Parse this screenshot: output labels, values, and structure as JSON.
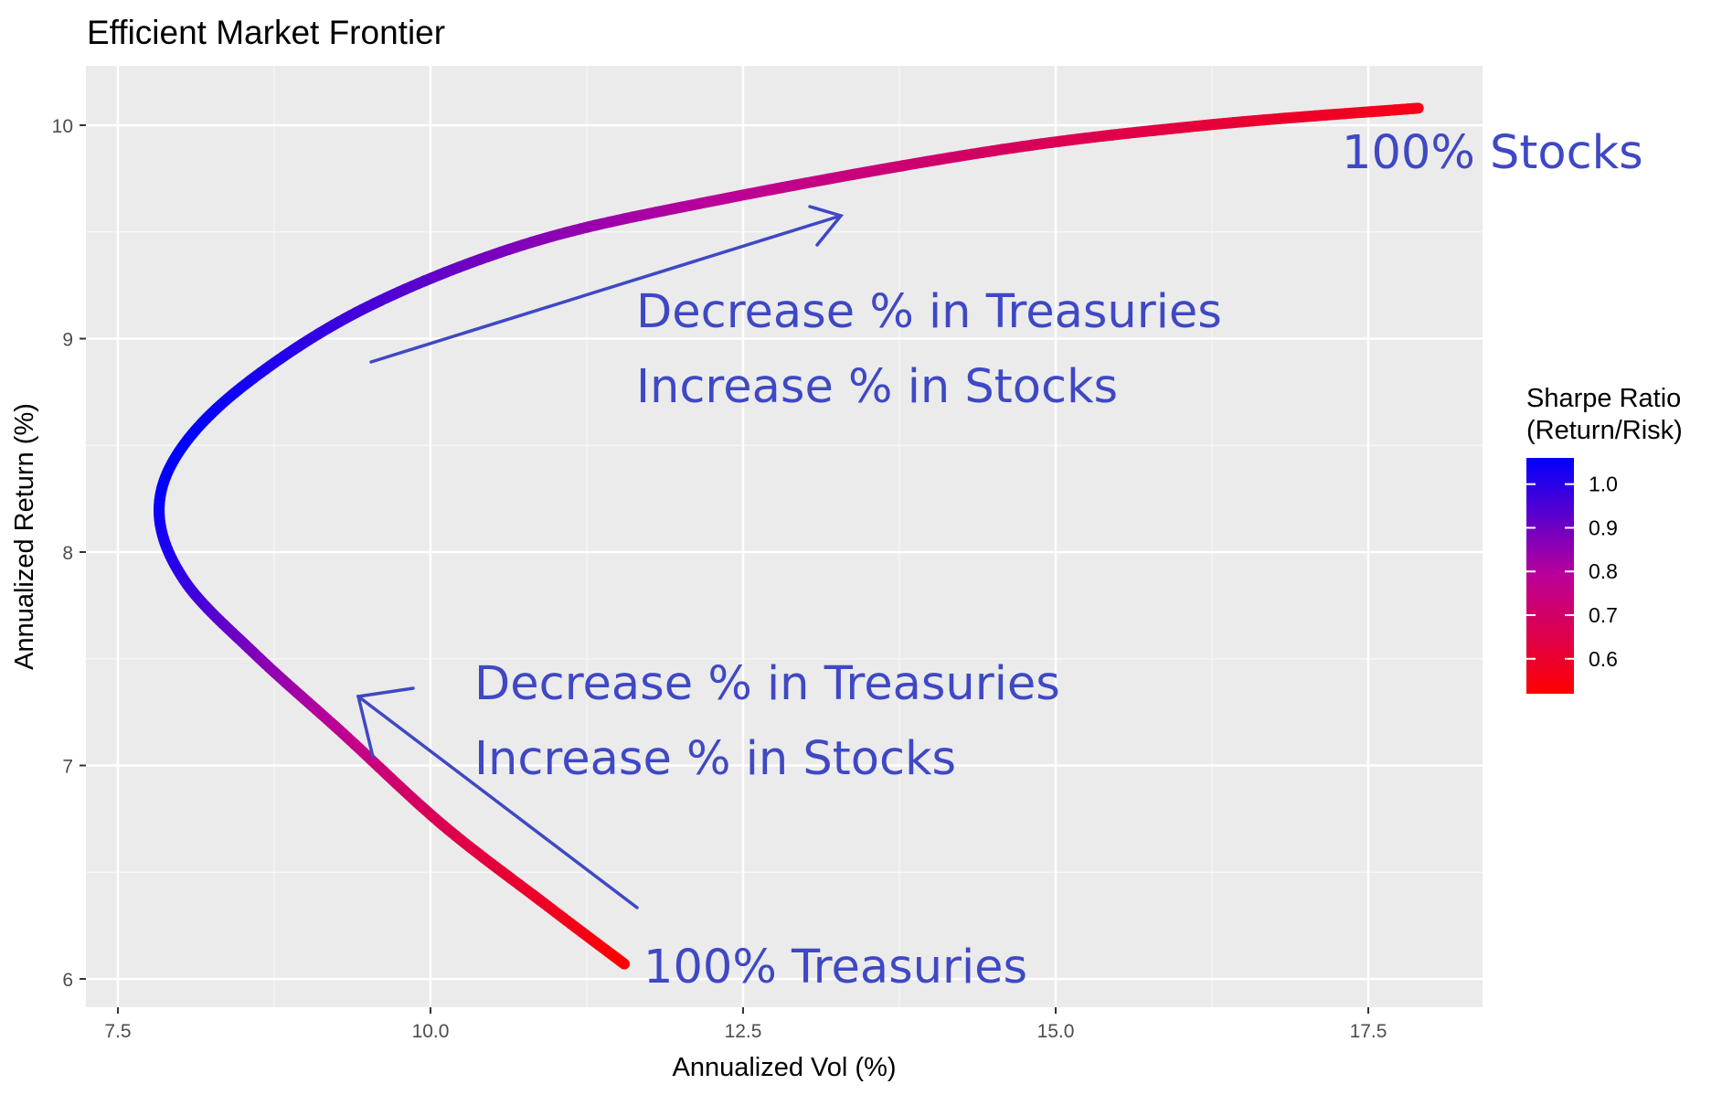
{
  "chart_data": {
    "type": "line",
    "title": "Efficient Market Frontier",
    "xlabel": "Annualized Vol (%)",
    "ylabel": "Annualized Return (%)",
    "xlim": [
      7.5,
      18.3
    ],
    "ylim": [
      6.0,
      10.2
    ],
    "x_ticks": [
      7.5,
      10.0,
      12.5,
      15.0,
      17.5
    ],
    "x_tick_labels": [
      "7.5",
      "10.0",
      "12.5",
      "15.0",
      "17.5"
    ],
    "y_ticks": [
      6,
      7,
      8,
      9,
      10
    ],
    "y_tick_labels": [
      "6",
      "7",
      "8",
      "9",
      "10"
    ],
    "grid": true,
    "series": [
      {
        "points": [
          {
            "x": 11.55,
            "y": 6.07,
            "sharpe": 0.52
          },
          {
            "x": 10.94,
            "y": 6.34,
            "sharpe": 0.58
          },
          {
            "x": 10.1,
            "y": 6.72,
            "sharpe": 0.66
          },
          {
            "x": 9.3,
            "y": 7.15,
            "sharpe": 0.77
          },
          {
            "x": 8.6,
            "y": 7.52,
            "sharpe": 0.87
          },
          {
            "x": 8.04,
            "y": 7.86,
            "sharpe": 0.98
          },
          {
            "x": 7.83,
            "y": 8.18,
            "sharpe": 1.04
          },
          {
            "x": 8.0,
            "y": 8.48,
            "sharpe": 1.06
          },
          {
            "x": 8.55,
            "y": 8.8,
            "sharpe": 1.03
          },
          {
            "x": 9.5,
            "y": 9.15,
            "sharpe": 0.96
          },
          {
            "x": 10.8,
            "y": 9.45,
            "sharpe": 0.87
          },
          {
            "x": 12.3,
            "y": 9.65,
            "sharpe": 0.79
          },
          {
            "x": 14.5,
            "y": 9.88,
            "sharpe": 0.69
          },
          {
            "x": 16.2,
            "y": 10.0,
            "sharpe": 0.62
          },
          {
            "x": 17.9,
            "y": 10.08,
            "sharpe": 0.56
          }
        ]
      }
    ],
    "color_scale": {
      "title_line1": "Sharpe Ratio",
      "title_line2": "(Return/Risk)",
      "min": 0.52,
      "max": 1.06,
      "low_color": "#ff0000",
      "high_color": "#0000ff",
      "ticks": [
        1.0,
        0.9,
        0.8,
        0.7,
        0.6
      ],
      "tick_labels": [
        "1.0",
        "0.9",
        "0.8",
        "0.7",
        "0.6"
      ]
    },
    "annotations": {
      "stocks": "100% Stocks",
      "treasuries": "100% Treasuries",
      "upper_line1": "Decrease % in Treasuries",
      "upper_line2": "Increase % in Stocks",
      "lower_line1": "Decrease % in Treasuries",
      "lower_line2": "Increase % in Stocks",
      "color": "#3f48c4"
    },
    "panel_color": "#ebebeb",
    "grid_color": "#ffffff"
  }
}
